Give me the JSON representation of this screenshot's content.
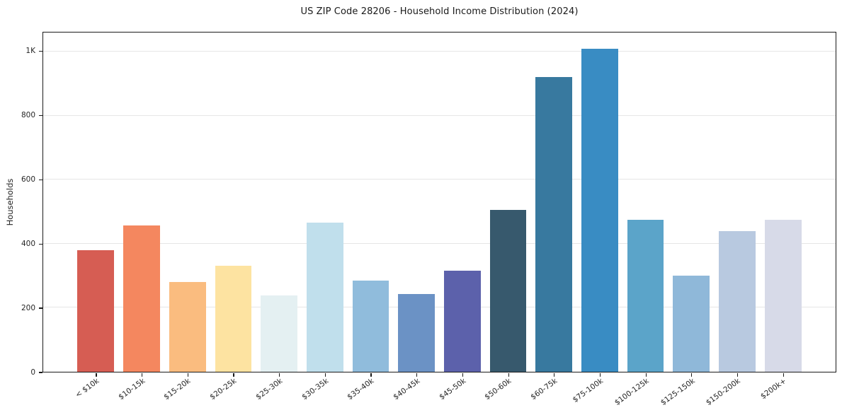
{
  "figure": {
    "title": "US ZIP Code 28206 - Household Income Distribution (2024)"
  },
  "chart_data": {
    "type": "bar",
    "title": "US ZIP Code 28206 - Household Income Distribution (2024)",
    "xlabel": "",
    "ylabel": "Households",
    "ylim": [
      0,
      1060
    ],
    "grid": true,
    "legend_position": "none",
    "y_ticks": [
      {
        "value": 0,
        "label": "0"
      },
      {
        "value": 200,
        "label": "200"
      },
      {
        "value": 400,
        "label": "400"
      },
      {
        "value": 600,
        "label": "600"
      },
      {
        "value": 800,
        "label": "800"
      },
      {
        "value": 1000,
        "label": "1K"
      }
    ],
    "categories": [
      "< $10k",
      "$10-15k",
      "$15-20k",
      "$20-25k",
      "$25-30k",
      "$30-35k",
      "$35-40k",
      "$40-45k",
      "$45-50k",
      "$50-60k",
      "$60-75k",
      "$75-100k",
      "$100-125k",
      "$125-150k",
      "$150-200k",
      "$200k+"
    ],
    "values": [
      380,
      458,
      280,
      332,
      238,
      465,
      285,
      242,
      315,
      505,
      920,
      1010,
      475,
      300,
      440,
      475
    ],
    "bar_colors": [
      "#d65d53",
      "#f4875f",
      "#fabc7f",
      "#fde3a1",
      "#e4f0f2",
      "#c0dfec",
      "#90bcdc",
      "#6b92c5",
      "#5c61ab",
      "#37596d",
      "#38799f",
      "#398cc3",
      "#5ba4c9",
      "#8fb8d9",
      "#b8c9e0",
      "#d7dae8"
    ]
  },
  "style": {
    "grid_color": "#e6e6e6",
    "spine_color": "#1a1a1a",
    "text_color": "#262626",
    "background": "#ffffff"
  }
}
